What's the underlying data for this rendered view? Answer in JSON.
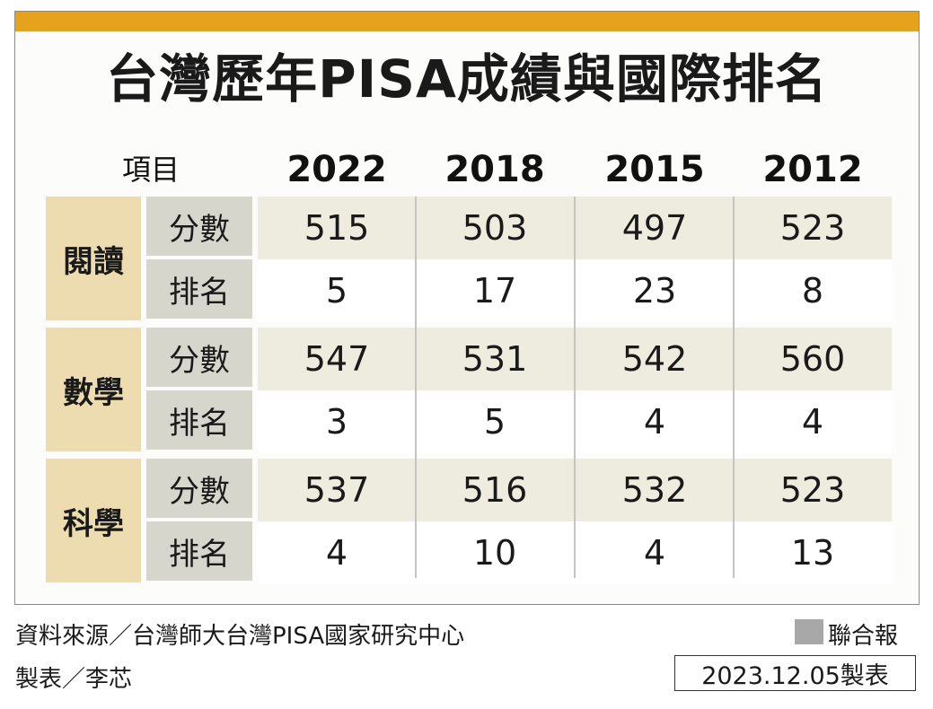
{
  "colors": {
    "top_bar": "#e6a21d",
    "category_fill": "#ecdcaf",
    "subcategory_fill": "#d7d6cd",
    "score_row_fill": "#eeebdf",
    "rank_row_fill": "#ffffff",
    "legend_square": "#a8a8a8"
  },
  "chart_data": {
    "type": "table",
    "title": "台灣歷年PISA成績與國際排名",
    "item_header": "項目",
    "years": [
      "2022",
      "2018",
      "2015",
      "2012"
    ],
    "categories": [
      {
        "name": "閱讀",
        "rows": [
          {
            "label": "分數",
            "values": [
              "515",
              "503",
              "497",
              "523"
            ]
          },
          {
            "label": "排名",
            "values": [
              "5",
              "17",
              "23",
              "8"
            ]
          }
        ]
      },
      {
        "name": "數學",
        "rows": [
          {
            "label": "分數",
            "values": [
              "547",
              "531",
              "542",
              "560"
            ]
          },
          {
            "label": "排名",
            "values": [
              "3",
              "5",
              "4",
              "4"
            ]
          }
        ]
      },
      {
        "name": "科學",
        "rows": [
          {
            "label": "分數",
            "values": [
              "537",
              "516",
              "532",
              "523"
            ]
          },
          {
            "label": "排名",
            "values": [
              "4",
              "10",
              "4",
              "13"
            ]
          }
        ]
      }
    ]
  },
  "footer": {
    "source": "資料來源／台灣師大台灣PISA國家研究中心",
    "maker": "製表／李芯",
    "publisher": "聯合報",
    "date": "2023.12.05製表"
  }
}
